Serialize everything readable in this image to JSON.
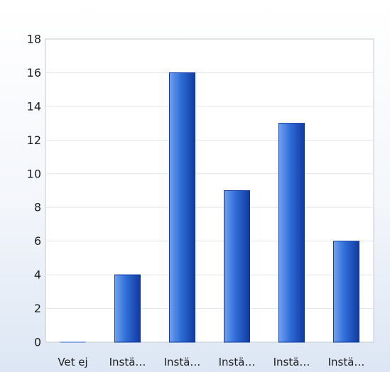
{
  "chart_data": {
    "type": "bar",
    "categories": [
      "Vet ej",
      "Instä…",
      "Instä…",
      "Instä…",
      "Instä…",
      "Instä…"
    ],
    "values": [
      0,
      4,
      16,
      9,
      13,
      6
    ],
    "ylim": [
      0,
      18
    ],
    "yticks": [
      0,
      2,
      4,
      6,
      8,
      10,
      12,
      14,
      16,
      18
    ],
    "grid": true,
    "title": "",
    "xlabel": "",
    "ylabel": ""
  },
  "colors": {
    "bar_light": "#6fa2ee",
    "bar_mid": "#2f6cd8",
    "bar_dark": "#103a9e",
    "grid": "#e3e6ea",
    "axis": "#c4c8ce"
  }
}
